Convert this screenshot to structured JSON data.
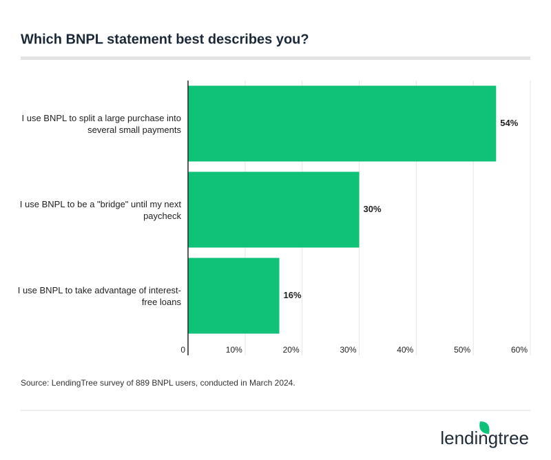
{
  "chart_data": {
    "type": "bar",
    "orientation": "horizontal",
    "title": "Which BNPL statement best describes you?",
    "categories": [
      "I use BNPL to split a large purchase into several small payments",
      "I use BNPL to be a \"bridge\" until my next paycheck",
      "I use BNPL to take advantage of interest-free loans"
    ],
    "values": [
      54,
      30,
      16
    ],
    "value_labels": [
      "54%",
      "30%",
      "16%"
    ],
    "color": "#0fc277",
    "xlim": [
      0,
      60
    ],
    "xticks": [
      0,
      {
        "value": 10,
        "label": "10%"
      },
      {
        "value": 20,
        "label": "20%"
      },
      {
        "value": 30,
        "label": "30%"
      },
      {
        "value": 40,
        "label": "40%"
      },
      {
        "value": 50,
        "label": "50%"
      },
      {
        "value": 60,
        "label": "60%"
      }
    ],
    "grid": true,
    "source": "Source: LendingTree survey of 889 BNPL users, conducted in March 2024.",
    "logo": "lendingtree"
  }
}
